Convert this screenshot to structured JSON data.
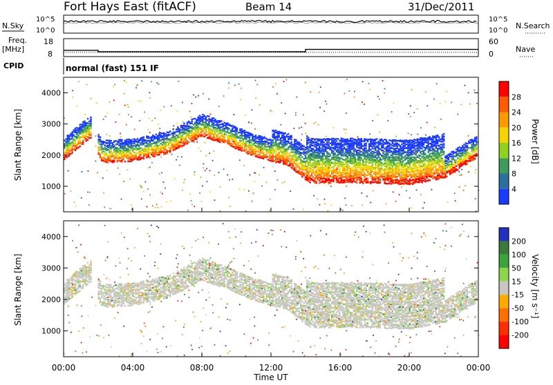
{
  "header": {
    "station": "Fort Hays East (fitACF)",
    "beam": "Beam 14",
    "date": "31/Dec/2011"
  },
  "strips": {
    "nsky_label": "N.Sky",
    "nsearch_label": "N.Search",
    "noise_ticks": [
      "10^5",
      "10^0"
    ],
    "freq_label": "Freq.",
    "freq_unit": "[MHz]",
    "freq_ticks": [
      "18",
      "8"
    ],
    "nave_label": "Nave",
    "nave_ticks": [
      "60",
      "0"
    ],
    "cpid_label": "CPID",
    "cpid_value": "normal (fast) 151 IF",
    "freq_steps": [
      {
        "t": 0,
        "mhz": 11.5
      },
      {
        "t": 2.0,
        "mhz": 11.5
      },
      {
        "t": 2.0,
        "mhz": 10.7
      },
      {
        "t": 14.0,
        "mhz": 10.7
      },
      {
        "t": 14.0,
        "mhz": 12.0
      },
      {
        "t": 24,
        "mhz": 12.0
      }
    ],
    "nave_value": 14
  },
  "chart_data": [
    {
      "type": "heatmap",
      "name": "power",
      "ylabel": "Slant Range [km]",
      "xlabel": "Time UT",
      "xticks": [
        "00:00",
        "04:00",
        "08:00",
        "12:00",
        "16:00",
        "20:00",
        "00:00"
      ],
      "yticks": [
        1000,
        2000,
        3000,
        4000
      ],
      "ylim": [
        180,
        4500
      ],
      "xlim_hours": [
        0,
        24
      ],
      "colorbar": {
        "label": "Power [dB]",
        "ticks": [
          "28",
          "24",
          "20",
          "16",
          "12",
          "8",
          "4"
        ],
        "colors": [
          "#ff0000",
          "#ff5a00",
          "#ff9a00",
          "#f5d400",
          "#8fd020",
          "#3e9c5a",
          "#2a6fa0",
          "#1a3aff"
        ]
      },
      "echo_lower_edge_km": [
        [
          0,
          1900
        ],
        [
          1.5,
          2600
        ],
        [
          2.2,
          1800
        ],
        [
          4,
          1850
        ],
        [
          6,
          2100
        ],
        [
          8,
          2650
        ],
        [
          9.5,
          2350
        ],
        [
          11,
          2000
        ],
        [
          13,
          1700
        ],
        [
          14.2,
          1150
        ],
        [
          17,
          1150
        ],
        [
          20,
          1100
        ],
        [
          22,
          1300
        ],
        [
          24,
          2000
        ]
      ]
    },
    {
      "type": "heatmap",
      "name": "velocity",
      "ylabel": "Slant Range [km]",
      "xlabel": "Time UT",
      "xticks": [
        "00:00",
        "04:00",
        "08:00",
        "12:00",
        "16:00",
        "20:00",
        "00:00"
      ],
      "yticks": [
        1000,
        2000,
        3000,
        4000
      ],
      "ylim": [
        180,
        4500
      ],
      "colorbar": {
        "label": "Velocity [m s⁻¹]",
        "ticks": [
          "200",
          "100",
          "50",
          "15",
          "-15",
          "-50",
          "-100",
          "-200"
        ],
        "colors": [
          "#2030c0",
          "#3a7a3a",
          "#3aa53a",
          "#8fd54a",
          "#c8c8c0",
          "#ffaa00",
          "#ff7000",
          "#ff3000",
          "#ff0000"
        ]
      }
    }
  ]
}
